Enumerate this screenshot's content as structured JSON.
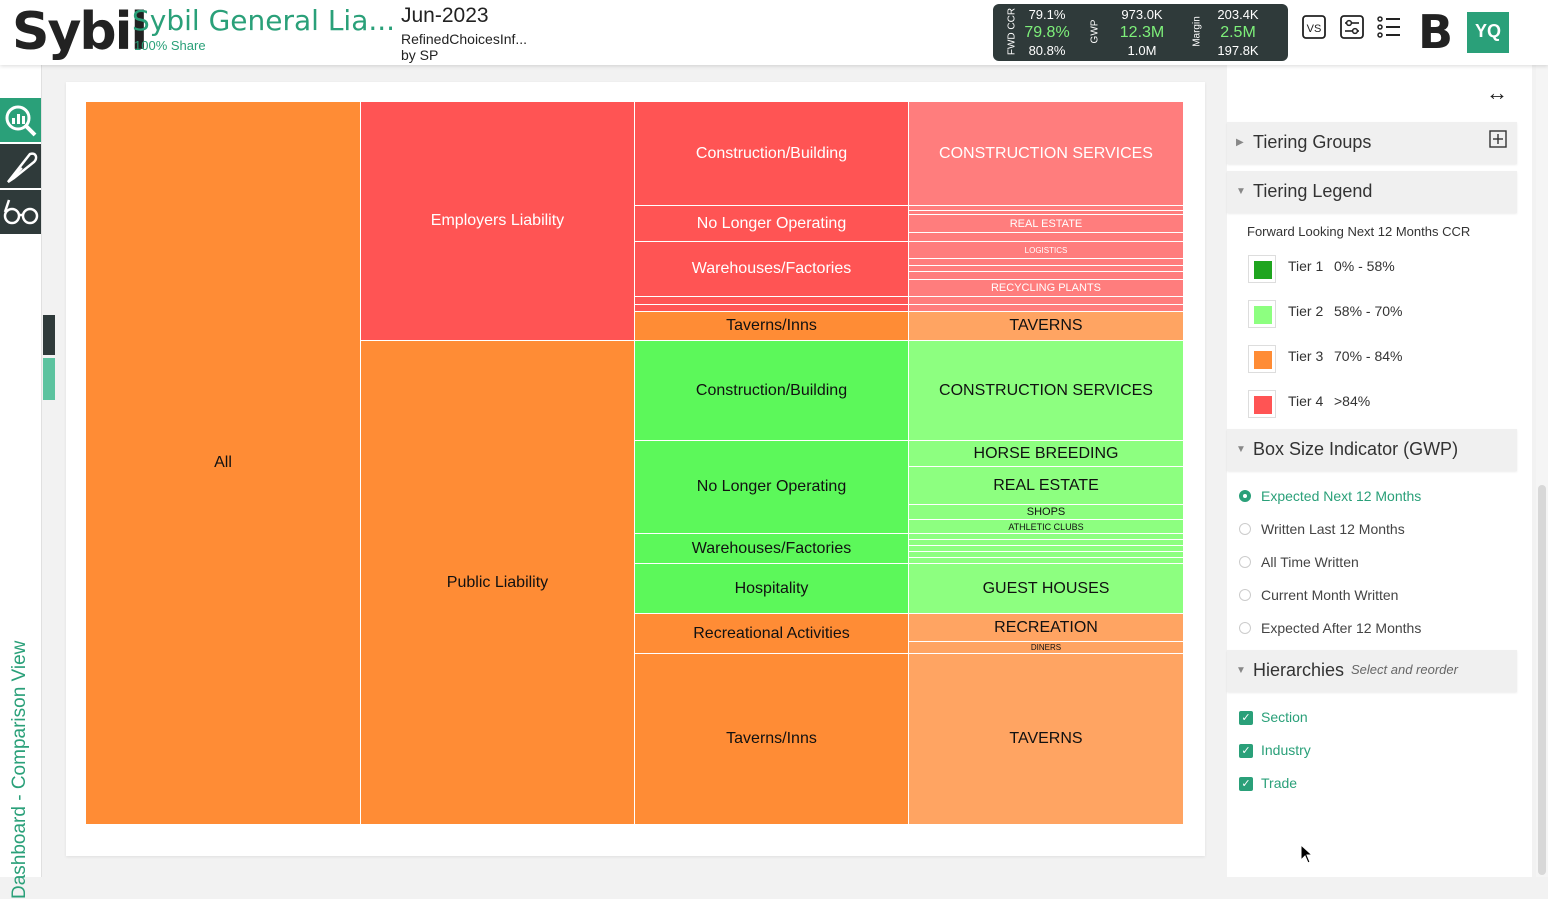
{
  "header": {
    "logo": "Sybil",
    "title": "Sybil General Lia...",
    "subtitle": "100% Share",
    "period": "Jun-2023",
    "scenario_line1": "RefinedChoicesInf...",
    "scenario_line2": "by SP",
    "metrics": {
      "fwd_ccr_label": "FWD CCR",
      "gwp_label": "GWP",
      "margin_label": "Margin",
      "ccr": [
        "79.1%",
        "79.8%",
        "80.8%"
      ],
      "gwp": [
        "973.0K",
        "12.3M",
        "1.0M"
      ],
      "margin": [
        "203.4K",
        "2.5M",
        "197.8K"
      ]
    },
    "vs_label": "VS",
    "brand_letter": "B",
    "avatar_initials": "YQ"
  },
  "rail": {
    "vertical_label": "Dashboard - Comparison View"
  },
  "colors": {
    "tier1": "#1fa51f",
    "tier2": "#8dff80",
    "tier3": "#ff8c35",
    "tier4": "#ff5454",
    "accent": "#2aa079"
  },
  "treemap": {
    "all": "All",
    "sections": [
      "Employers Liability",
      "Public Liability"
    ],
    "industries": [
      "Construction/Building",
      "No Longer Operating",
      "Warehouses/Factories",
      "Taverns/Inns",
      "Construction/Building",
      "No Longer Operating",
      "Warehouses/Factories",
      "Hospitality",
      "Recreational Activities",
      "Taverns/Inns"
    ],
    "trades": [
      "CONSTRUCTION SERVICES",
      "REAL ESTATE",
      "LOGISTICS",
      "RECYCLING PLANTS",
      "TAVERNS",
      "CONSTRUCTION SERVICES",
      "HORSE BREEDING",
      "REAL ESTATE",
      "SHOPS",
      "ATHLETIC CLUBS",
      "GUEST HOUSES",
      "RECREATION",
      "DINERS",
      "TAVERNS"
    ]
  },
  "panel": {
    "tiering_groups": "Tiering Groups",
    "tiering_legend": "Tiering Legend",
    "legend_caption": "Forward Looking Next 12 Months CCR",
    "tiers": [
      {
        "name": "Tier 1",
        "range": "0% - 58%"
      },
      {
        "name": "Tier 2",
        "range": "58% - 70%"
      },
      {
        "name": "Tier 3",
        "range": "70% - 84%"
      },
      {
        "name": "Tier 4",
        "range": ">84%"
      }
    ],
    "box_size": "Box Size Indicator (GWP)",
    "box_options": [
      "Expected Next 12 Months",
      "Written Last 12 Months",
      "All Time Written",
      "Current Month Written",
      "Expected After 12 Months"
    ],
    "box_selected": "Expected Next 12 Months",
    "hierarchies": "Hierarchies",
    "hierarchies_hint": "Select and reorder",
    "hierarchy_items": [
      "Section",
      "Industry",
      "Trade"
    ]
  }
}
